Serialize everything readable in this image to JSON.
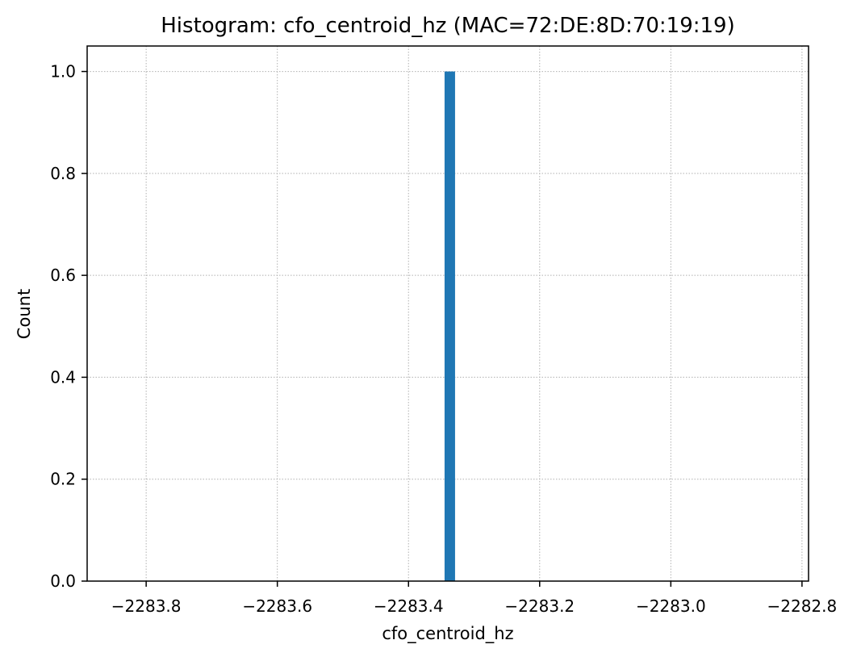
{
  "chart_data": {
    "type": "bar",
    "title": "Histogram: cfo_centroid_hz (MAC=72:DE:8D:70:19:19)",
    "xlabel": "cfo_centroid_hz",
    "ylabel": "Count",
    "xlim": [
      -2283.89,
      -2282.79
    ],
    "ylim": [
      0,
      1.05
    ],
    "x_ticks": [
      -2283.8,
      -2283.6,
      -2283.4,
      -2283.2,
      -2283.0,
      -2282.8
    ],
    "x_tick_labels": [
      "−2283.8",
      "−2283.6",
      "−2283.4",
      "−2283.2",
      "−2283.0",
      "−2282.8"
    ],
    "y_ticks": [
      0.0,
      0.2,
      0.4,
      0.6,
      0.8,
      1.0
    ],
    "y_tick_labels": [
      "0.0",
      "0.2",
      "0.4",
      "0.6",
      "0.8",
      "1.0"
    ],
    "bins": [
      {
        "x0": -2283.345,
        "x1": -2283.329,
        "count": 1
      }
    ],
    "grid": true,
    "colors": {
      "bar": "#1f77b4",
      "grid": "#b0b0b0",
      "axis": "#000000"
    }
  }
}
